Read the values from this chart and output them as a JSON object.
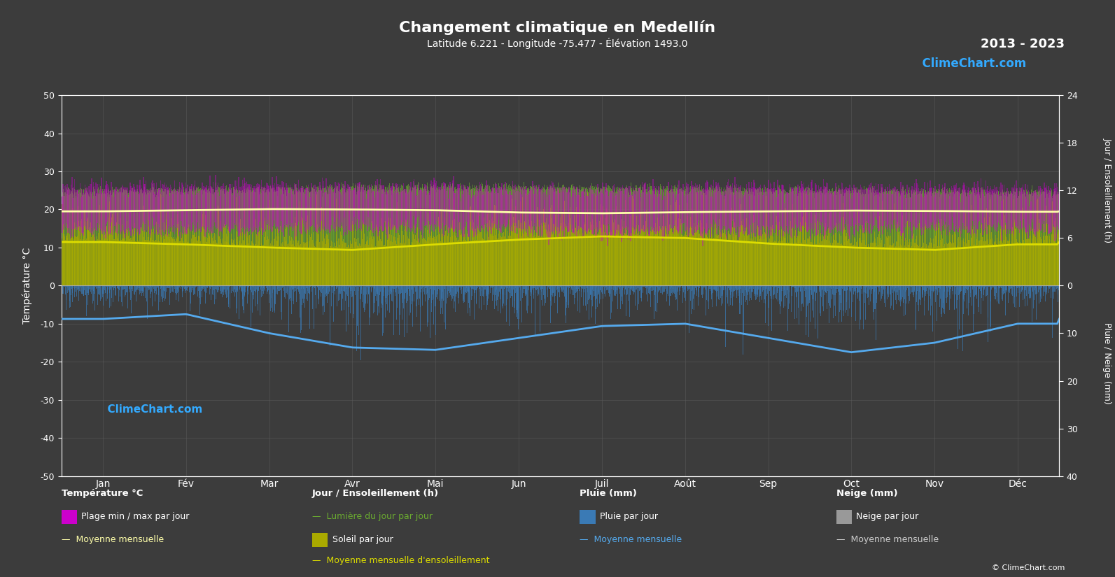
{
  "title": "Changement climatique en Medellín",
  "subtitle": "Latitude 6.221 - Longitude -75.477 - Élévation 1493.0",
  "year_range": "2013 - 2023",
  "background_color": "#3c3c3c",
  "plot_bg_color": "#3c3c3c",
  "text_color": "#ffffff",
  "grid_color": "#606060",
  "months": [
    "Jan",
    "Fév",
    "Mar",
    "Avr",
    "Mai",
    "Jun",
    "Juil",
    "Août",
    "Sep",
    "Oct",
    "Nov",
    "Déc"
  ],
  "temp_ylim": [
    -50,
    50
  ],
  "temp_ticks": [
    -50,
    -40,
    -30,
    -20,
    -10,
    0,
    10,
    20,
    30,
    40,
    50
  ],
  "sun_ticks": [
    0,
    6,
    12,
    18,
    24
  ],
  "rain_ticks": [
    0,
    10,
    20,
    30,
    40
  ],
  "temp_mean_monthly": [
    19.5,
    19.8,
    20.1,
    20.0,
    19.8,
    19.2,
    19.0,
    19.3,
    19.5,
    19.7,
    19.6,
    19.4
  ],
  "temp_min_mean": [
    14.5,
    14.8,
    15.0,
    15.2,
    15.0,
    14.5,
    14.0,
    14.2,
    14.5,
    15.0,
    15.0,
    14.7
  ],
  "temp_max_mean": [
    25.5,
    25.8,
    26.0,
    25.8,
    25.5,
    25.0,
    25.0,
    25.5,
    25.5,
    25.5,
    25.2,
    25.0
  ],
  "sun_mean_monthly": [
    5.5,
    5.2,
    4.8,
    4.5,
    5.2,
    5.8,
    6.2,
    6.0,
    5.3,
    4.8,
    4.5,
    5.2
  ],
  "daylight_monthly": [
    11.8,
    12.0,
    12.1,
    12.2,
    12.3,
    12.3,
    12.2,
    12.1,
    12.0,
    11.9,
    11.8,
    11.7
  ],
  "rain_mean_monthly": [
    7.0,
    6.0,
    10.0,
    13.0,
    13.5,
    11.0,
    8.5,
    8.0,
    11.0,
    14.0,
    12.0,
    8.0
  ],
  "colors": {
    "temp_range_fill": "#cc00cc",
    "temp_mean_line": "#ffffaa",
    "sun_light_fill": "#6aaa30",
    "sun_fill": "#aaaa00",
    "sun_mean_line": "#dddd00",
    "rain_fill": "#3a7ab5",
    "rain_mean_line": "#55aaee",
    "snow_fill": "#999999",
    "snow_mean_line": "#cccccc",
    "zero_line": "#aaaaaa"
  }
}
